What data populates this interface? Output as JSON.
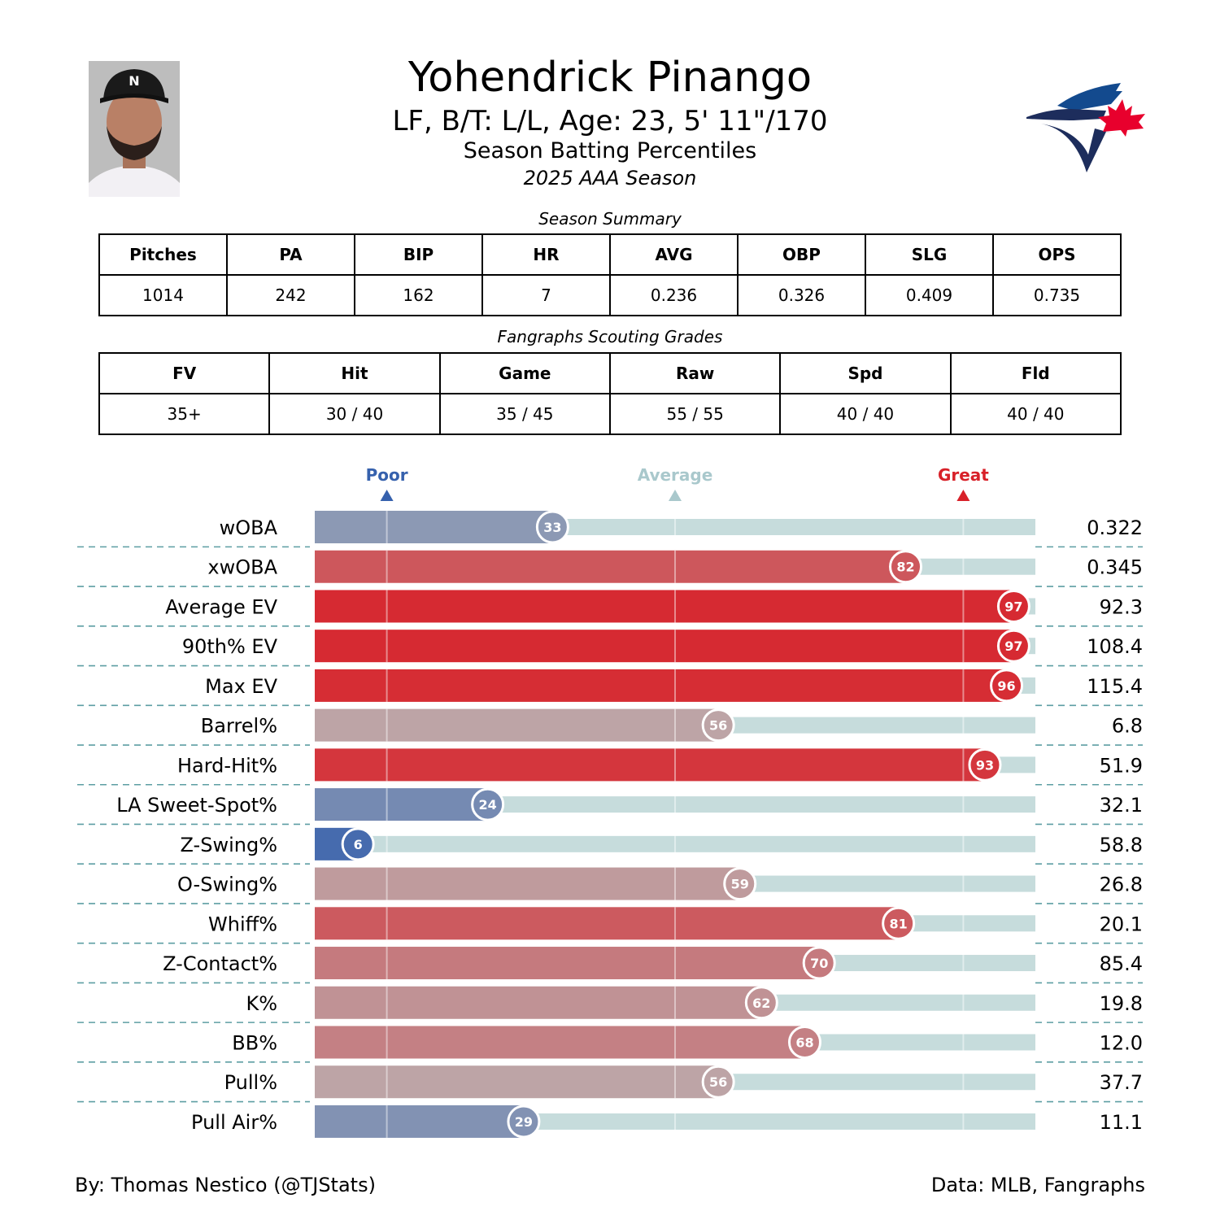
{
  "header": {
    "player_name": "Yohendrick Pinango",
    "bio": "LF, B/T: L/L, Age: 23, 5' 11\"/170",
    "subtitle": "Season Batting Percentiles",
    "season": "2025 AAA Season",
    "team_logo": "toronto-blue-jays-logo",
    "logo_colors": {
      "blue": "#134a8e",
      "navy": "#1d2d5c",
      "red": "#e8002d"
    }
  },
  "season_summary": {
    "caption": "Season Summary",
    "headers": [
      "Pitches",
      "PA",
      "BIP",
      "HR",
      "AVG",
      "OBP",
      "SLG",
      "OPS"
    ],
    "values": [
      "1014",
      "242",
      "162",
      "7",
      "0.236",
      "0.326",
      "0.409",
      "0.735"
    ]
  },
  "scouting_grades": {
    "caption": "Fangraphs Scouting Grades",
    "headers": [
      "FV",
      "Hit",
      "Game",
      "Raw",
      "Spd",
      "Fld"
    ],
    "values": [
      "35+",
      "30 / 40",
      "35 / 45",
      "55 / 55",
      "40 / 40",
      "40 / 40"
    ]
  },
  "chart_data": {
    "type": "bar",
    "orientation": "horizontal",
    "xlim": [
      0,
      100
    ],
    "reference_markers": [
      {
        "label": "Poor",
        "value": 10,
        "color": "#3661ad"
      },
      {
        "label": "Average",
        "value": 50,
        "color": "#a9c8cc"
      },
      {
        "label": "Great",
        "value": 90,
        "color": "#d82129"
      }
    ],
    "colors": {
      "low": "#3661ad",
      "mid": "#b9b6b7",
      "high": "#d82129",
      "track": "#c6dcdc",
      "divider": "#5d9ea3"
    },
    "categories": [
      "wOBA",
      "xwOBA",
      "Average EV",
      "90th% EV",
      "Max EV",
      "Barrel%",
      "Hard-Hit%",
      "LA Sweet-Spot%",
      "Z-Swing%",
      "O-Swing%",
      "Whiff%",
      "Z-Contact%",
      "K%",
      "BB%",
      "Pull%",
      "Pull Air%"
    ],
    "percentiles": [
      33,
      82,
      97,
      97,
      96,
      56,
      93,
      24,
      6,
      59,
      81,
      70,
      62,
      68,
      56,
      29
    ],
    "stat_values": [
      "0.322",
      "0.345",
      "92.3",
      "108.4",
      "115.4",
      "6.8",
      "51.9",
      "32.1",
      "58.8",
      "26.8",
      "20.1",
      "85.4",
      "19.8",
      "12.0",
      "37.7",
      "11.1"
    ]
  },
  "footer": {
    "credit": "By: Thomas Nestico (@TJStats)",
    "source": "Data: MLB, Fangraphs"
  }
}
